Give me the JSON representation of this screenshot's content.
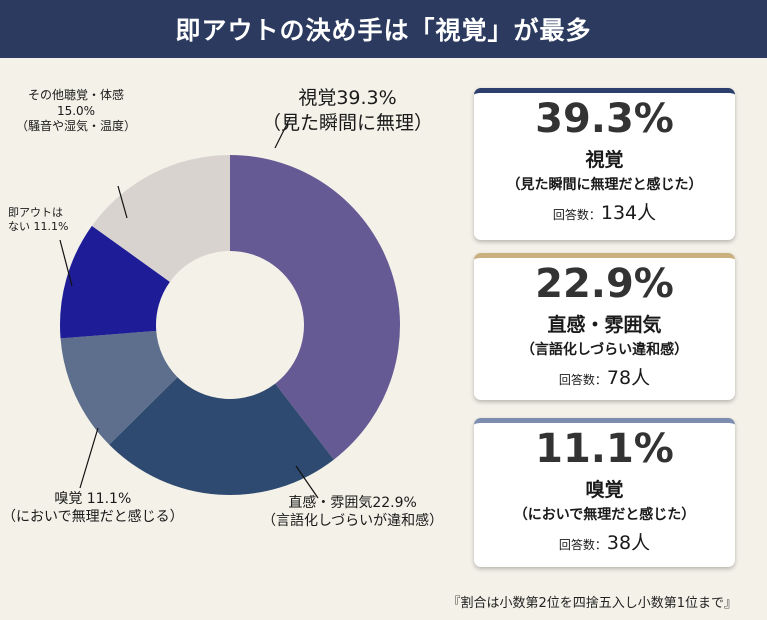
{
  "header": {
    "title": "即アウトの決め手は「視覚」が最多"
  },
  "chart_data": {
    "type": "pie",
    "title": "即アウトの決め手は「視覚」が最多",
    "categories": [
      "視覚",
      "直感・雰囲気",
      "嗅覚",
      "即アウトはない",
      "その他聴覚・体感"
    ],
    "values": [
      39.3,
      22.9,
      11.1,
      11.1,
      15.0
    ],
    "colors": [
      "#655a93",
      "#2f4a70",
      "#5d6f8c",
      "#1f1c98",
      "#d9d3d0"
    ],
    "donut": true,
    "labels": [
      {
        "l1": "視覚39.3%",
        "l2": "（見た瞬間に無理）"
      },
      {
        "l1": "直感・雰囲気22.9%",
        "l2": "（言語化しづらいが違和感）"
      },
      {
        "l1": "嗅覚 11.1%",
        "l2": "（においで無理だと感じる）"
      },
      {
        "l1": "即アウトは",
        "l2": "ない 11.1%"
      },
      {
        "l1": "その他聴覚・体感",
        "l2": "15.0%",
        "l3": "（騒音や湿気・温度）"
      }
    ]
  },
  "cards": [
    {
      "pct": "39.3%",
      "name": "視覚",
      "sub": "（見た瞬間に無理だと感じた）",
      "count_label": "回答数：",
      "count": "134人",
      "accent": "#2c3e6b"
    },
    {
      "pct": "22.9%",
      "name": "直感・雰囲気",
      "sub": "（言語化しづらい違和感）",
      "count_label": "回答数：",
      "count": "78人",
      "accent": "#c9b07e"
    },
    {
      "pct": "11.1%",
      "name": "嗅覚",
      "sub": "（においで無理だと感じた）",
      "count_label": "回答数：",
      "count": "38人",
      "accent": "#7d8db0"
    }
  ],
  "note": "『割合は小数第2位を四捨五入し小数第1位まで』"
}
